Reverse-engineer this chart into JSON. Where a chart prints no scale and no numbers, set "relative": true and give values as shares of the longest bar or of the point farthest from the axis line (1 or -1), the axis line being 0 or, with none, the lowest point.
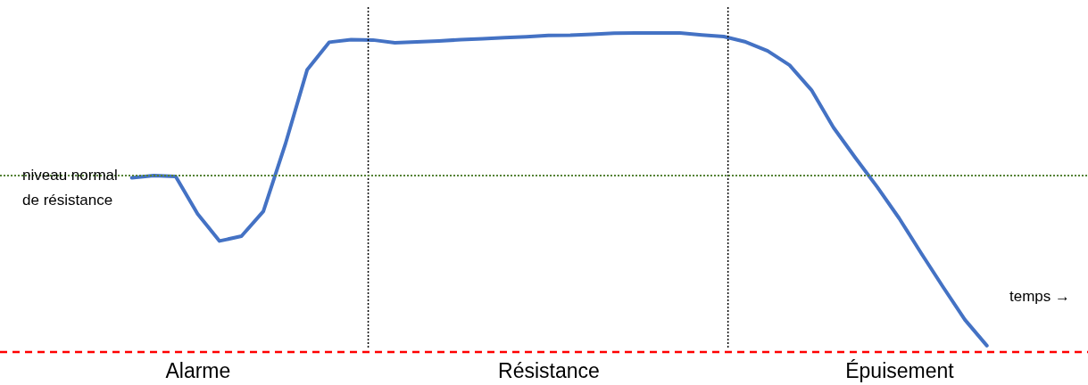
{
  "chart_data": {
    "type": "line",
    "relative": true,
    "xlabel": "temps →",
    "categories": [
      null,
      null,
      null,
      "Alarme",
      null,
      null,
      null,
      null,
      null,
      null,
      null,
      null,
      null,
      null,
      null,
      null,
      null,
      null,
      null,
      "Résistance",
      null,
      null,
      null,
      null,
      null,
      null,
      null,
      null,
      null,
      null,
      null,
      null,
      null,
      null,
      null,
      "Épuisement",
      null,
      null,
      null,
      null
    ],
    "series": [
      {
        "color": "#4472c4",
        "values": [
          0.546,
          0.553,
          0.55,
          0.433,
          0.348,
          0.363,
          0.441,
          0.651,
          0.885,
          0.971,
          0.979,
          0.978,
          0.969,
          0.972,
          0.975,
          0.979,
          0.982,
          0.985,
          0.988,
          0.992,
          0.993,
          0.996,
          0.999,
          1,
          1,
          1,
          0.994,
          0.989,
          0.972,
          0.944,
          0.899,
          0.821,
          0.704,
          0.609,
          0.517,
          0.419,
          0.31,
          0.204,
          0.101,
          0.02
        ]
      }
    ],
    "ref_lines": [
      {
        "axis": "y",
        "value": 0.553,
        "label": "niveau normal\nde résistance",
        "color": "#548235",
        "line_style": "dotted"
      }
    ]
  }
}
